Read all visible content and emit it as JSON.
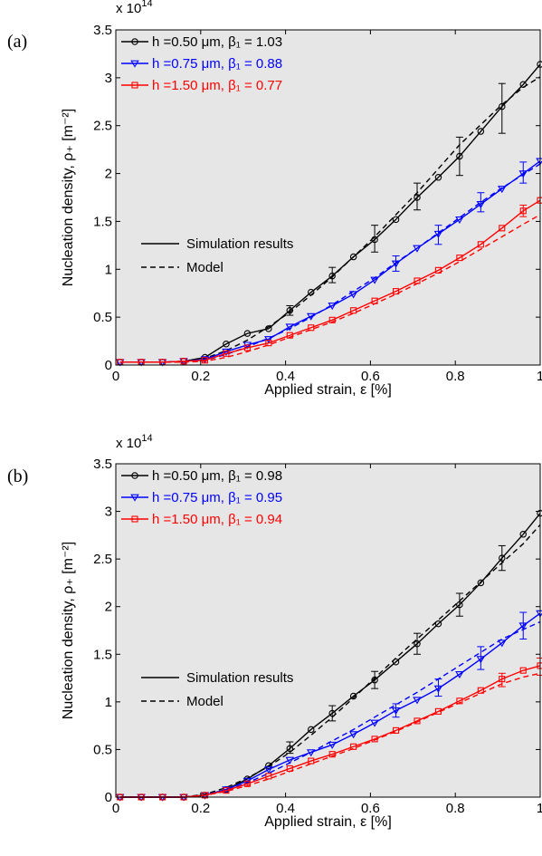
{
  "chart_data": [
    {
      "type": "line",
      "panel_label": "(a)",
      "xlabel": "Applied strain, ε [%]",
      "ylabel": "Nucleation density, ρ₊ [m⁻²]",
      "y_multiplier": "x 10^14",
      "y_multiplier_base": "x 10",
      "y_multiplier_exp": "14",
      "xlim": [
        0,
        1
      ],
      "ylim": [
        0,
        3.5
      ],
      "xticks": [
        "0",
        "0.2",
        "0.4",
        "0.6",
        "0.8",
        "1"
      ],
      "yticks": [
        "0",
        "0.5",
        "1",
        "1.5",
        "2",
        "2.5",
        "3",
        "3.5"
      ],
      "background": "#e6e6e6",
      "grid": false,
      "legend_position": "top-left",
      "series": [
        {
          "name": "h =0.50 μm, β₁ = 1.03",
          "color": "#000000",
          "marker": "circle",
          "x": [
            0.01,
            0.06,
            0.11,
            0.16,
            0.21,
            0.26,
            0.31,
            0.36,
            0.41,
            0.46,
            0.51,
            0.56,
            0.61,
            0.66,
            0.71,
            0.76,
            0.81,
            0.86,
            0.91,
            0.96,
            1.0
          ],
          "y": [
            0.03,
            0.03,
            0.03,
            0.04,
            0.08,
            0.22,
            0.33,
            0.38,
            0.57,
            0.76,
            0.93,
            1.13,
            1.31,
            1.52,
            1.75,
            1.96,
            2.18,
            2.44,
            2.7,
            2.93,
            3.14
          ],
          "errorbars": [
            {
              "x": 0.41,
              "low": 0.52,
              "high": 0.62
            },
            {
              "x": 0.51,
              "low": 0.86,
              "high": 1.02
            },
            {
              "x": 0.61,
              "low": 1.18,
              "high": 1.46
            },
            {
              "x": 0.71,
              "low": 1.62,
              "high": 1.9
            },
            {
              "x": 0.81,
              "low": 1.98,
              "high": 2.38
            },
            {
              "x": 0.91,
              "low": 2.42,
              "high": 2.94
            }
          ],
          "model": {
            "x": [
              0.01,
              0.16,
              0.21,
              0.26,
              0.31,
              0.36,
              0.41,
              0.46,
              0.51,
              0.56,
              0.61,
              0.66,
              0.71,
              0.76,
              0.81,
              0.86,
              0.91,
              0.96,
              1.0
            ],
            "y": [
              0.03,
              0.03,
              0.07,
              0.15,
              0.26,
              0.4,
              0.55,
              0.73,
              0.92,
              1.13,
              1.34,
              1.57,
              1.8,
              2.05,
              2.3,
              2.51,
              2.72,
              2.9,
              3.01
            ]
          }
        },
        {
          "name": "h =0.75 μm, β₁ = 0.88",
          "color": "#0000ff",
          "marker": "triangle-down",
          "x": [
            0.01,
            0.06,
            0.11,
            0.16,
            0.21,
            0.26,
            0.31,
            0.36,
            0.41,
            0.46,
            0.51,
            0.56,
            0.61,
            0.66,
            0.71,
            0.76,
            0.81,
            0.86,
            0.91,
            0.96,
            1.0
          ],
          "y": [
            0.03,
            0.03,
            0.03,
            0.04,
            0.06,
            0.14,
            0.21,
            0.27,
            0.4,
            0.51,
            0.62,
            0.74,
            0.89,
            1.06,
            1.22,
            1.37,
            1.52,
            1.68,
            1.84,
            2.0,
            2.13
          ],
          "errorbars": [
            {
              "x": 0.66,
              "low": 0.98,
              "high": 1.14
            },
            {
              "x": 0.76,
              "low": 1.26,
              "high": 1.46
            },
            {
              "x": 0.86,
              "low": 1.6,
              "high": 1.8
            },
            {
              "x": 0.96,
              "low": 1.9,
              "high": 2.12
            }
          ],
          "model": {
            "x": [
              0.01,
              0.16,
              0.21,
              0.26,
              0.31,
              0.36,
              0.41,
              0.46,
              0.51,
              0.56,
              0.61,
              0.66,
              0.71,
              0.76,
              0.81,
              0.86,
              0.91,
              0.96,
              1.0
            ],
            "y": [
              0.03,
              0.03,
              0.05,
              0.11,
              0.19,
              0.28,
              0.38,
              0.5,
              0.63,
              0.77,
              0.91,
              1.07,
              1.22,
              1.38,
              1.54,
              1.7,
              1.85,
              1.99,
              2.1
            ]
          }
        },
        {
          "name": "h =1.50 μm, β₁ = 0.77",
          "color": "#ff0000",
          "marker": "square",
          "x": [
            0.01,
            0.06,
            0.11,
            0.16,
            0.21,
            0.26,
            0.31,
            0.36,
            0.41,
            0.46,
            0.51,
            0.56,
            0.61,
            0.66,
            0.71,
            0.76,
            0.81,
            0.86,
            0.91,
            0.96,
            1.0
          ],
          "y": [
            0.03,
            0.03,
            0.03,
            0.04,
            0.05,
            0.12,
            0.18,
            0.23,
            0.31,
            0.39,
            0.47,
            0.57,
            0.67,
            0.77,
            0.88,
            0.99,
            1.12,
            1.26,
            1.43,
            1.61,
            1.72
          ],
          "errorbars": [
            {
              "x": 0.96,
              "low": 1.55,
              "high": 1.67
            }
          ],
          "model": {
            "x": [
              0.01,
              0.16,
              0.21,
              0.26,
              0.31,
              0.36,
              0.41,
              0.46,
              0.51,
              0.56,
              0.61,
              0.66,
              0.71,
              0.76,
              0.81,
              0.86,
              0.91,
              0.96,
              1.0
            ],
            "y": [
              0.03,
              0.03,
              0.04,
              0.08,
              0.14,
              0.21,
              0.29,
              0.37,
              0.45,
              0.54,
              0.64,
              0.74,
              0.85,
              0.96,
              1.08,
              1.21,
              1.34,
              1.47,
              1.57
            ]
          }
        }
      ],
      "style_legend": {
        "solid": "Simulation results",
        "dashed": "Model"
      }
    },
    {
      "type": "line",
      "panel_label": "(b)",
      "xlabel": "Applied strain, ε [%]",
      "ylabel": "Nucleation density, ρ₊ [m⁻²]",
      "y_multiplier": "x 10^14",
      "y_multiplier_base": "x 10",
      "y_multiplier_exp": "14",
      "xlim": [
        0,
        1
      ],
      "ylim": [
        0,
        3.5
      ],
      "xticks": [
        "0",
        "0.2",
        "0.4",
        "0.6",
        "0.8",
        "1"
      ],
      "yticks": [
        "0",
        "0.5",
        "1",
        "1.5",
        "2",
        "2.5",
        "3",
        "3.5"
      ],
      "background": "#e6e6e6",
      "grid": false,
      "legend_position": "top-left",
      "series": [
        {
          "name": "h =0.50 μm, β₁ = 0.98",
          "color": "#000000",
          "marker": "circle",
          "x": [
            0.01,
            0.06,
            0.11,
            0.16,
            0.21,
            0.26,
            0.31,
            0.36,
            0.41,
            0.46,
            0.51,
            0.56,
            0.61,
            0.66,
            0.71,
            0.76,
            0.81,
            0.86,
            0.91,
            0.96,
            1.0
          ],
          "y": [
            0.0,
            0.0,
            0.0,
            0.0,
            0.02,
            0.08,
            0.19,
            0.33,
            0.51,
            0.71,
            0.88,
            1.06,
            1.23,
            1.42,
            1.61,
            1.82,
            2.02,
            2.25,
            2.51,
            2.76,
            2.98
          ],
          "errorbars": [
            {
              "x": 0.41,
              "low": 0.46,
              "high": 0.58
            },
            {
              "x": 0.51,
              "low": 0.8,
              "high": 0.96
            },
            {
              "x": 0.61,
              "low": 1.14,
              "high": 1.32
            },
            {
              "x": 0.71,
              "low": 1.5,
              "high": 1.72
            },
            {
              "x": 0.81,
              "low": 1.9,
              "high": 2.14
            },
            {
              "x": 0.91,
              "low": 2.38,
              "high": 2.64
            }
          ],
          "model": {
            "x": [
              0.01,
              0.16,
              0.21,
              0.26,
              0.31,
              0.36,
              0.41,
              0.46,
              0.51,
              0.56,
              0.61,
              0.66,
              0.71,
              0.76,
              0.81,
              0.86,
              0.91,
              0.96,
              1.0
            ],
            "y": [
              0.0,
              0.0,
              0.03,
              0.1,
              0.2,
              0.32,
              0.47,
              0.65,
              0.84,
              1.04,
              1.25,
              1.46,
              1.66,
              1.86,
              2.06,
              2.26,
              2.46,
              2.66,
              2.86
            ]
          }
        },
        {
          "name": "h =0.75 μm, β₁ = 0.95",
          "color": "#0000ff",
          "marker": "triangle-down",
          "x": [
            0.01,
            0.06,
            0.11,
            0.16,
            0.21,
            0.26,
            0.31,
            0.36,
            0.41,
            0.46,
            0.51,
            0.56,
            0.61,
            0.66,
            0.71,
            0.76,
            0.81,
            0.86,
            0.91,
            0.96,
            1.0
          ],
          "y": [
            0.0,
            0.0,
            0.0,
            0.0,
            0.02,
            0.08,
            0.17,
            0.29,
            0.39,
            0.47,
            0.55,
            0.66,
            0.78,
            0.91,
            1.02,
            1.14,
            1.29,
            1.45,
            1.62,
            1.8,
            1.93
          ],
          "errorbars": [
            {
              "x": 0.66,
              "low": 0.84,
              "high": 0.98
            },
            {
              "x": 0.76,
              "low": 1.06,
              "high": 1.24
            },
            {
              "x": 0.86,
              "low": 1.34,
              "high": 1.58
            },
            {
              "x": 0.96,
              "low": 1.66,
              "high": 1.94
            }
          ],
          "model": {
            "x": [
              0.01,
              0.16,
              0.21,
              0.26,
              0.31,
              0.36,
              0.41,
              0.46,
              0.51,
              0.56,
              0.61,
              0.66,
              0.71,
              0.76,
              0.81,
              0.86,
              0.91,
              0.96,
              1.0
            ],
            "y": [
              0.0,
              0.0,
              0.02,
              0.07,
              0.15,
              0.25,
              0.36,
              0.47,
              0.59,
              0.71,
              0.84,
              0.97,
              1.1,
              1.24,
              1.38,
              1.52,
              1.66,
              1.76,
              1.84
            ]
          }
        },
        {
          "name": "h =1.50 μm, β₁ = 0.94",
          "color": "#ff0000",
          "marker": "square",
          "x": [
            0.01,
            0.06,
            0.11,
            0.16,
            0.21,
            0.26,
            0.31,
            0.36,
            0.41,
            0.46,
            0.51,
            0.56,
            0.61,
            0.66,
            0.71,
            0.76,
            0.81,
            0.86,
            0.91,
            0.96,
            1.0
          ],
          "y": [
            0.0,
            0.0,
            0.0,
            0.0,
            0.02,
            0.07,
            0.14,
            0.22,
            0.3,
            0.38,
            0.45,
            0.53,
            0.61,
            0.7,
            0.8,
            0.9,
            1.01,
            1.12,
            1.24,
            1.33,
            1.38
          ],
          "errorbars": [
            {
              "x": 0.91,
              "low": 1.16,
              "high": 1.3
            },
            {
              "x": 1.0,
              "low": 1.28,
              "high": 1.46
            }
          ],
          "model": {
            "x": [
              0.01,
              0.16,
              0.21,
              0.26,
              0.31,
              0.36,
              0.41,
              0.46,
              0.51,
              0.56,
              0.61,
              0.66,
              0.71,
              0.76,
              0.81,
              0.86,
              0.91,
              0.96,
              1.0
            ],
            "y": [
              0.0,
              0.0,
              0.02,
              0.06,
              0.12,
              0.19,
              0.27,
              0.35,
              0.43,
              0.51,
              0.6,
              0.69,
              0.79,
              0.89,
              0.99,
              1.09,
              1.19,
              1.26,
              1.3
            ]
          }
        }
      ],
      "style_legend": {
        "solid": "Simulation results",
        "dashed": "Model"
      }
    }
  ]
}
